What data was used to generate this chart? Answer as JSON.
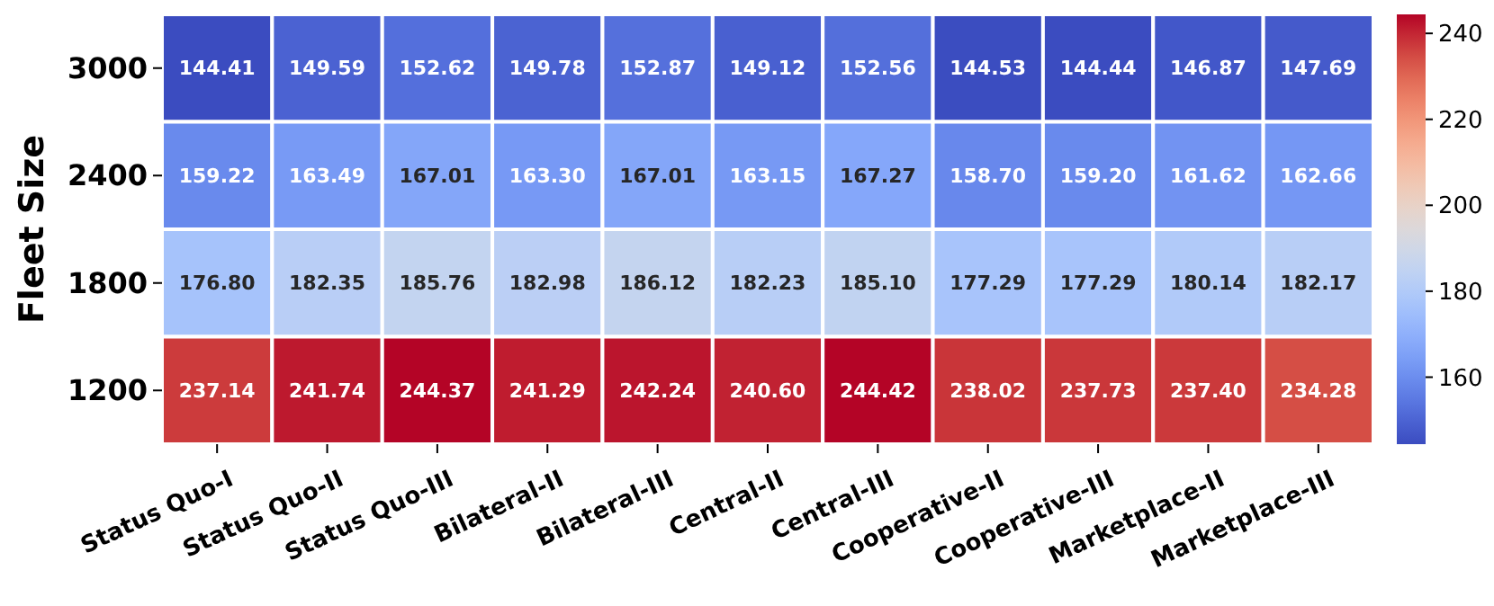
{
  "chart_data": {
    "type": "heatmap",
    "ylabel": "Fleet Size",
    "categories": [
      "Status Quo-I",
      "Status Quo-II",
      "Status Quo-III",
      "Bilateral-II",
      "Bilateral-III",
      "Central-II",
      "Central-III",
      "Cooperative-II",
      "Cooperative-III",
      "Marketplace-II",
      "Marketplace-III"
    ],
    "y_categories": [
      "3000",
      "2400",
      "1800",
      "1200"
    ],
    "cells": [
      [
        144.41,
        149.59,
        152.62,
        149.78,
        152.87,
        149.12,
        152.56,
        144.53,
        144.44,
        146.87,
        147.69
      ],
      [
        159.22,
        163.49,
        167.01,
        163.3,
        167.01,
        163.15,
        167.27,
        158.7,
        159.2,
        161.62,
        162.66
      ],
      [
        176.8,
        182.35,
        185.76,
        182.98,
        186.12,
        182.23,
        185.1,
        177.29,
        177.29,
        180.14,
        182.17
      ],
      [
        237.14,
        241.74,
        244.37,
        241.29,
        242.24,
        240.6,
        244.42,
        238.02,
        237.73,
        237.4,
        234.28
      ]
    ],
    "cell_labels": [
      [
        "144.41",
        "149.59",
        "152.62",
        "149.78",
        "152.87",
        "149.12",
        "152.56",
        "144.53",
        "144.44",
        "146.87",
        "147.69"
      ],
      [
        "159.22",
        "163.49",
        "167.01",
        "163.30",
        "167.01",
        "163.15",
        "167.27",
        "158.70",
        "159.20",
        "161.62",
        "162.66"
      ],
      [
        "176.80",
        "182.35",
        "185.76",
        "182.98",
        "186.12",
        "182.23",
        "185.10",
        "177.29",
        "177.29",
        "180.14",
        "182.17"
      ],
      [
        "237.14",
        "241.74",
        "244.37",
        "241.29",
        "242.24",
        "240.60",
        "244.42",
        "238.02",
        "237.73",
        "237.40",
        "234.28"
      ]
    ],
    "clim": [
      144.41,
      244.42
    ],
    "cticks": [
      160,
      180,
      200,
      220,
      240
    ]
  }
}
